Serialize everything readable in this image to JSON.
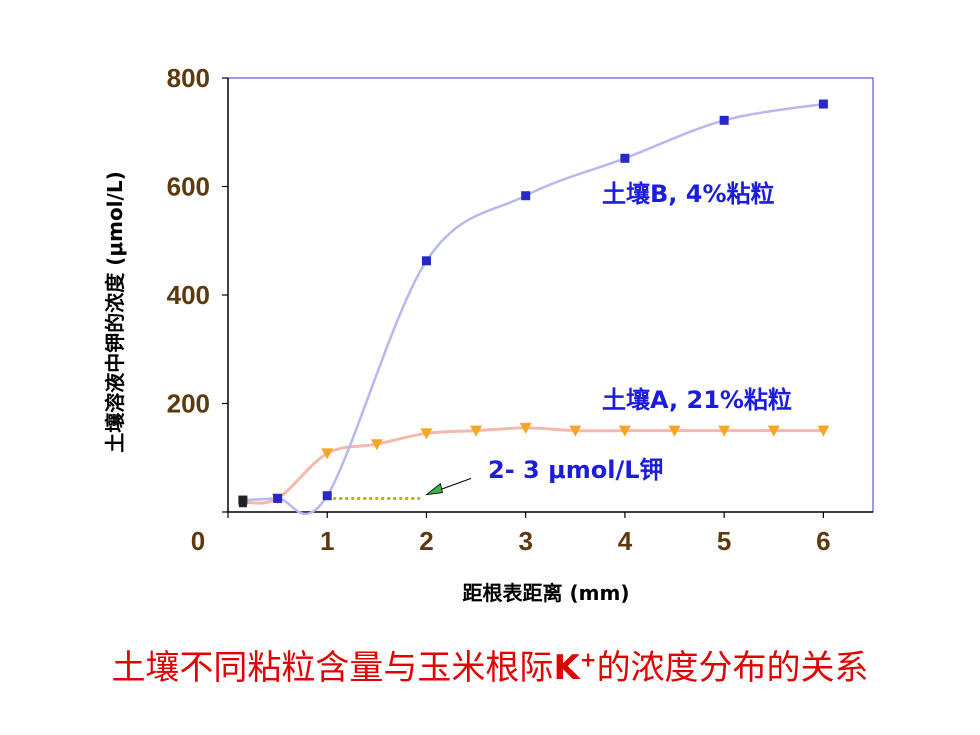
{
  "colors": {
    "axis_text": "#5C3A0E",
    "plot_border": "#3A3ACC",
    "series_b_line": "#B8B8EC",
    "series_b_marker": "#2828C8",
    "series_a_line": "#F5B8AF",
    "series_a_marker": "#F5A623",
    "annotation_blue": "#1C1CDC",
    "dotted_line": "#B8B800",
    "caption": "#E00000"
  },
  "chart_data": {
    "type": "line",
    "xlabel": "距根表距离 (mm)",
    "ylabel": "土壤溶液中钾的浓度 (μmol/L)",
    "xlim": [
      0,
      6.5
    ],
    "ylim": [
      0,
      800
    ],
    "xticks": [
      "0",
      "1",
      "2",
      "3",
      "4",
      "5",
      "6"
    ],
    "yticks": [
      "0",
      "200",
      "400",
      "600",
      "800"
    ],
    "series": [
      {
        "name": "土壤B, 4%粘粒",
        "marker": "square",
        "points": [
          [
            0.15,
            22
          ],
          [
            0.5,
            25
          ],
          [
            1.0,
            30
          ],
          [
            2.0,
            463
          ],
          [
            3.0,
            583
          ],
          [
            4.0,
            652
          ],
          [
            5.0,
            722
          ],
          [
            6.0,
            752
          ]
        ]
      },
      {
        "name": "土壤A, 21%粘粒",
        "marker": "triangle-down",
        "points": [
          [
            0.15,
            18
          ],
          [
            0.5,
            25
          ],
          [
            1.0,
            108
          ],
          [
            1.5,
            125
          ],
          [
            2.0,
            145
          ],
          [
            2.5,
            150
          ],
          [
            3.0,
            155
          ],
          [
            3.5,
            150
          ],
          [
            4.0,
            150
          ],
          [
            4.5,
            150
          ],
          [
            5.0,
            150
          ],
          [
            5.5,
            150
          ],
          [
            6.0,
            150
          ]
        ]
      }
    ],
    "annotations": [
      {
        "text": "土壤B, 4%粘粒"
      },
      {
        "text": "土壤A, 21%粘粒"
      },
      {
        "text": "2- 3 μmol/L钾"
      }
    ]
  },
  "caption": {
    "before": "土壤不同粘粒含量与玉米根际",
    "k": "K",
    "sup": "+",
    "after": "的浓度分布的关系"
  }
}
